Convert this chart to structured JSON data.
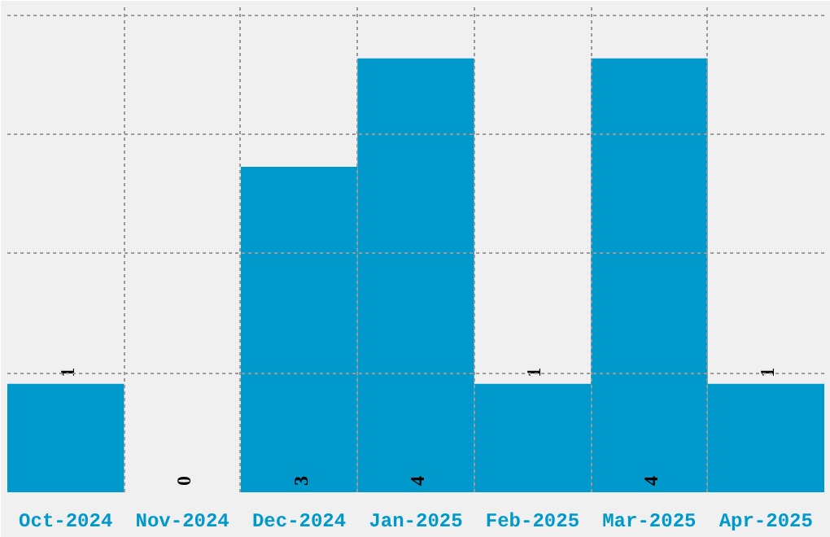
{
  "chart_data": {
    "type": "bar",
    "categories": [
      "Oct-2024",
      "Nov-2024",
      "Dec-2024",
      "Jan-2025",
      "Feb-2025",
      "Mar-2025",
      "Apr-2025"
    ],
    "values": [
      1,
      0,
      3,
      4,
      1,
      4,
      1
    ],
    "color": "#0099cc",
    "data_labels": true,
    "grid": true,
    "tick_labels": "x",
    "ylim": [
      0,
      4.47
    ],
    "yticks": [
      {
        "value": 1.1,
        "label": null
      },
      {
        "value": 2.2,
        "label": null
      },
      {
        "value": 3.3,
        "label": null
      },
      {
        "value": 4.4,
        "label": null
      }
    ]
  }
}
